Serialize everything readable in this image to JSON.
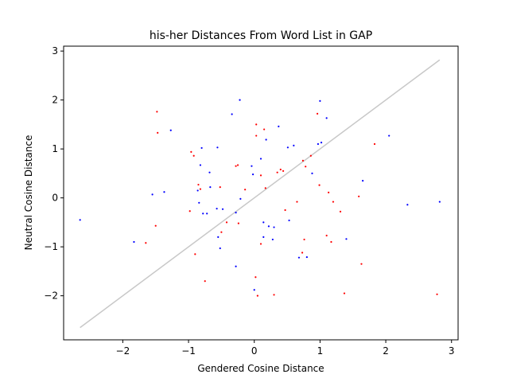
{
  "chart_data": {
    "type": "scatter",
    "title": "his-her Distances From Word List in GAP",
    "xlabel": "Gendered Cosine Distance",
    "ylabel": "Neutral Cosine Distance",
    "xlim": [
      -2.9,
      3.1
    ],
    "ylim": [
      -2.9,
      3.1
    ],
    "xticks": [
      -2,
      -1,
      0,
      1,
      2,
      3
    ],
    "yticks": [
      -2,
      -1,
      0,
      1,
      2,
      3
    ],
    "xtick_labels": [
      "−2",
      "−1",
      "0",
      "1",
      "2",
      "3"
    ],
    "ytick_labels": [
      "−2",
      "−1",
      "0",
      "1",
      "2",
      "3"
    ],
    "grid": false,
    "reference_line": {
      "x": [
        -2.65,
        2.82
      ],
      "y": [
        -2.65,
        2.82
      ],
      "color": "#c8c8c8"
    },
    "series": [
      {
        "color": "#0000ff",
        "points": [
          [
            -2.65,
            -0.45
          ],
          [
            -1.83,
            -0.9
          ],
          [
            -1.55,
            0.07
          ],
          [
            -1.37,
            0.12
          ],
          [
            -1.27,
            1.38
          ],
          [
            -0.86,
            0.15
          ],
          [
            -0.84,
            -0.1
          ],
          [
            -0.82,
            0.67
          ],
          [
            -0.8,
            1.02
          ],
          [
            -0.78,
            -0.32
          ],
          [
            -0.72,
            -0.32
          ],
          [
            -0.68,
            0.52
          ],
          [
            -0.67,
            0.22
          ],
          [
            -0.57,
            -0.22
          ],
          [
            -0.56,
            1.03
          ],
          [
            -0.55,
            -0.8
          ],
          [
            -0.52,
            -1.03
          ],
          [
            -0.48,
            -0.23
          ],
          [
            -0.34,
            1.71
          ],
          [
            -0.28,
            -0.3
          ],
          [
            -0.28,
            -1.4
          ],
          [
            -0.22,
            2.0
          ],
          [
            -0.21,
            -0.02
          ],
          [
            -0.04,
            0.65
          ],
          [
            -0.02,
            0.48
          ],
          [
            0.0,
            -1.88
          ],
          [
            0.1,
            0.8
          ],
          [
            0.14,
            -0.8
          ],
          [
            0.14,
            -0.5
          ],
          [
            0.18,
            1.19
          ],
          [
            0.22,
            -0.58
          ],
          [
            0.28,
            -0.85
          ],
          [
            0.3,
            -0.6
          ],
          [
            0.37,
            1.46
          ],
          [
            0.51,
            1.03
          ],
          [
            0.53,
            -0.46
          ],
          [
            0.6,
            1.07
          ],
          [
            0.68,
            -1.22
          ],
          [
            0.8,
            -1.21
          ],
          [
            0.88,
            0.5
          ],
          [
            0.97,
            1.1
          ],
          [
            1.0,
            1.98
          ],
          [
            1.02,
            1.13
          ],
          [
            1.1,
            1.63
          ],
          [
            1.4,
            -0.84
          ],
          [
            1.65,
            0.35
          ],
          [
            2.05,
            1.27
          ],
          [
            2.33,
            -0.14
          ],
          [
            2.82,
            -0.08
          ]
        ]
      },
      {
        "color": "#ff0000",
        "points": [
          [
            -1.65,
            -0.92
          ],
          [
            -1.5,
            -0.57
          ],
          [
            -1.48,
            1.76
          ],
          [
            -1.47,
            1.33
          ],
          [
            -0.98,
            -0.27
          ],
          [
            -0.96,
            0.94
          ],
          [
            -0.92,
            0.86
          ],
          [
            -0.9,
            -1.15
          ],
          [
            -0.85,
            0.27
          ],
          [
            -0.82,
            0.18
          ],
          [
            -0.75,
            -1.7
          ],
          [
            -0.52,
            0.22
          ],
          [
            -0.5,
            -0.7
          ],
          [
            -0.42,
            -0.5
          ],
          [
            -0.28,
            0.65
          ],
          [
            -0.25,
            0.67
          ],
          [
            -0.24,
            -0.52
          ],
          [
            -0.14,
            0.17
          ],
          [
            0.02,
            -1.62
          ],
          [
            0.03,
            1.27
          ],
          [
            0.03,
            1.5
          ],
          [
            0.05,
            -2.0
          ],
          [
            0.1,
            0.46
          ],
          [
            0.1,
            -0.94
          ],
          [
            0.15,
            1.4
          ],
          [
            0.17,
            0.2
          ],
          [
            0.3,
            -1.98
          ],
          [
            0.35,
            0.52
          ],
          [
            0.4,
            0.58
          ],
          [
            0.44,
            0.55
          ],
          [
            0.47,
            -0.25
          ],
          [
            0.65,
            -0.08
          ],
          [
            0.73,
            -1.12
          ],
          [
            0.74,
            0.76
          ],
          [
            0.76,
            -0.85
          ],
          [
            0.78,
            0.64
          ],
          [
            0.86,
            0.86
          ],
          [
            0.96,
            1.72
          ],
          [
            0.99,
            0.26
          ],
          [
            1.1,
            -0.77
          ],
          [
            1.13,
            0.11
          ],
          [
            1.17,
            -0.9
          ],
          [
            1.2,
            -0.08
          ],
          [
            1.31,
            -0.28
          ],
          [
            1.37,
            -1.95
          ],
          [
            1.59,
            0.03
          ],
          [
            1.63,
            -1.35
          ],
          [
            1.83,
            1.1
          ],
          [
            2.78,
            -1.97
          ]
        ]
      }
    ]
  }
}
